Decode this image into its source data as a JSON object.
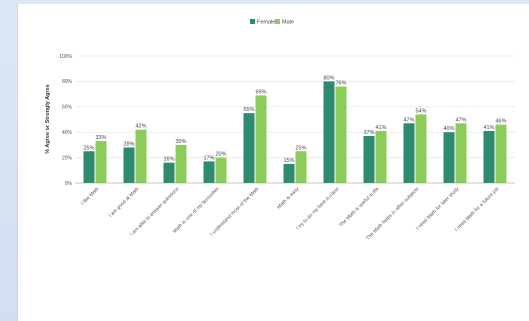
{
  "chart_data": {
    "type": "bar",
    "ylabel": "% Agree or Strongly Agree",
    "ylim": [
      0,
      100
    ],
    "yticks": [
      "0%",
      "20%",
      "40%",
      "60%",
      "80%",
      "100%"
    ],
    "grid": true,
    "legend_position": "top-center",
    "categories": [
      "I like Math",
      "I am good at Math",
      "I am able to answer questions",
      "Math is one of my favourites",
      "I understand most of the Math",
      "Math is easy",
      "I try to do my best in class",
      "The Math is useful in life",
      "The Math helps in other subjects",
      "I need Math for later study",
      "I need Math for a future job"
    ],
    "series": [
      {
        "name": "Female",
        "color": "#2e8b6f",
        "values": [
          25,
          28,
          16,
          17,
          55,
          15,
          80,
          37,
          47,
          40,
          41
        ],
        "labels": [
          "25%",
          "28%",
          "16%",
          "17%",
          "55%",
          "15%",
          "80%",
          "37%",
          "47%",
          "40%",
          "41%"
        ]
      },
      {
        "name": "Male",
        "color": "#8ccc5b",
        "values": [
          33,
          42,
          30,
          20,
          69,
          25,
          76,
          41,
          54,
          47,
          46
        ],
        "labels": [
          "33%",
          "42%",
          "30%",
          "20%",
          "69%",
          "25%",
          "76%",
          "41%",
          "54%",
          "47%",
          "46%"
        ]
      }
    ]
  }
}
